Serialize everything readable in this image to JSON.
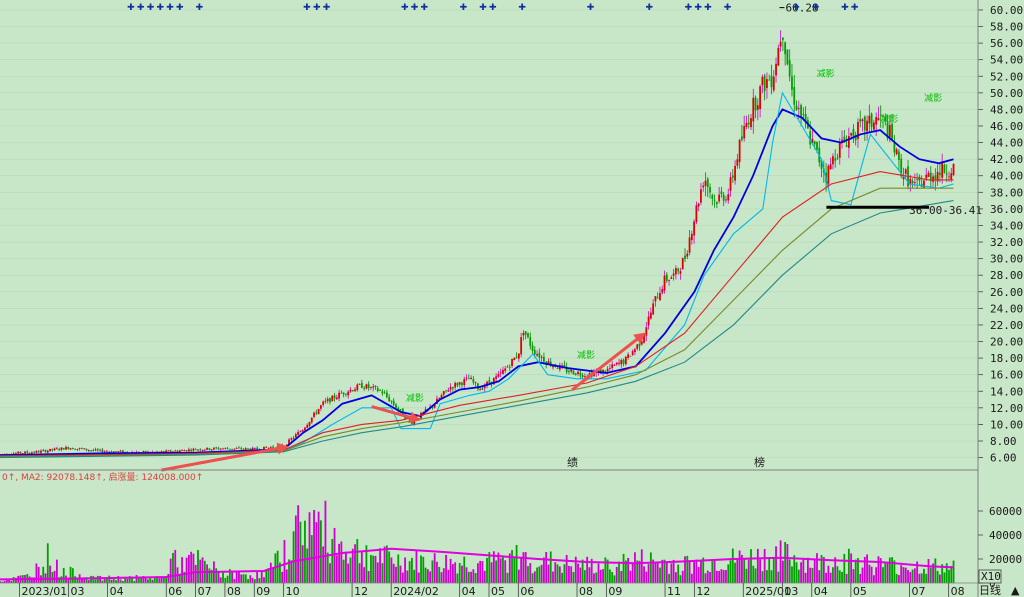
{
  "chart_data": [
    {
      "type": "candlestick",
      "title": "",
      "y_axis": {
        "ticks": [
          60.0,
          58.0,
          56.0,
          54.0,
          52.0,
          50.0,
          48.0,
          46.0,
          44.0,
          42.0,
          40.0,
          38.0,
          36.0,
          34.0,
          32.0,
          30.0,
          28.0,
          26.0,
          24.0,
          22.0,
          20.0,
          18.0,
          16.0,
          14.0,
          12.0,
          10.0,
          8.0,
          6.0
        ],
        "tick_labels": [
          "60.00",
          "58.00",
          "56.00",
          "54.00",
          "52.00",
          "50.00",
          "48.00",
          "46.00",
          "44.00",
          "42.00",
          "40.00",
          "38.00",
          "36.00",
          "34.00",
          "32.00",
          "30.00",
          "28.00",
          "26.00",
          "24.00",
          "22.00",
          "20.00",
          "18.00",
          "16.00",
          "14.00",
          "12.00",
          "10.00",
          "8.00",
          "6.00"
        ],
        "range": [
          4.5,
          61.2
        ]
      },
      "x_axis": {
        "labels": [
          "2023/01",
          "03",
          "04",
          "06",
          "07",
          "08",
          "09",
          "10",
          "12",
          "2024/02",
          "04",
          "05",
          "06",
          "08",
          "09",
          "11",
          "12",
          "2025/01",
          "03",
          "04",
          "05",
          "07",
          "08"
        ],
        "label_units": [
          0.02,
          0.07,
          0.11,
          0.17,
          0.2,
          0.23,
          0.26,
          0.29,
          0.36,
          0.4,
          0.47,
          0.5,
          0.53,
          0.59,
          0.62,
          0.68,
          0.71,
          0.76,
          0.8,
          0.83,
          0.87,
          0.93,
          0.97
        ]
      },
      "annotations": {
        "peak_label": "60.28",
        "peak": {
          "x": 0.797,
          "y": 60.28
        },
        "support_label": "36.00-36.41",
        "support_price": 36.2,
        "support_x_range": [
          0.845,
          0.95
        ],
        "center_marks": [
          "绩",
          "榜"
        ],
        "signal_label": "减影"
      },
      "price_path": [
        [
          0.0,
          6.4
        ],
        [
          0.04,
          6.7
        ],
        [
          0.07,
          7.2
        ],
        [
          0.1,
          6.8
        ],
        [
          0.14,
          6.6
        ],
        [
          0.17,
          6.7
        ],
        [
          0.2,
          7.0
        ],
        [
          0.23,
          7.1
        ],
        [
          0.26,
          7.0
        ],
        [
          0.29,
          7.4
        ],
        [
          0.31,
          9.5
        ],
        [
          0.33,
          12.5
        ],
        [
          0.35,
          13.8
        ],
        [
          0.37,
          14.7
        ],
        [
          0.39,
          14.0
        ],
        [
          0.41,
          11.5
        ],
        [
          0.42,
          10.2
        ],
        [
          0.44,
          12.0
        ],
        [
          0.46,
          14.5
        ],
        [
          0.48,
          15.5
        ],
        [
          0.49,
          14.3
        ],
        [
          0.51,
          15.8
        ],
        [
          0.53,
          18.5
        ],
        [
          0.535,
          21.5
        ],
        [
          0.545,
          19.0
        ],
        [
          0.56,
          17.5
        ],
        [
          0.58,
          16.5
        ],
        [
          0.6,
          16.0
        ],
        [
          0.62,
          16.5
        ],
        [
          0.64,
          17.8
        ],
        [
          0.655,
          20.0
        ],
        [
          0.67,
          25.0
        ],
        [
          0.68,
          27.5
        ],
        [
          0.69,
          28.0
        ],
        [
          0.7,
          30.0
        ],
        [
          0.71,
          35.0
        ],
        [
          0.72,
          40.0
        ],
        [
          0.73,
          37.0
        ],
        [
          0.745,
          38.0
        ],
        [
          0.755,
          43.0
        ],
        [
          0.765,
          47.0
        ],
        [
          0.78,
          51.0
        ],
        [
          0.79,
          52.0
        ],
        [
          0.8,
          58.0
        ],
        [
          0.81,
          50.0
        ],
        [
          0.83,
          44.0
        ],
        [
          0.845,
          40.0
        ],
        [
          0.855,
          43.0
        ],
        [
          0.87,
          45.0
        ],
        [
          0.885,
          46.0
        ],
        [
          0.9,
          47.0
        ],
        [
          0.91,
          45.0
        ],
        [
          0.92,
          41.0
        ],
        [
          0.935,
          38.5
        ],
        [
          0.95,
          40.0
        ],
        [
          0.96,
          40.5
        ],
        [
          0.975,
          41.0
        ]
      ],
      "series": [
        {
          "name": "",
          "color": "#0000e0",
          "values": [
            [
              0.0,
              6.3
            ],
            [
              0.1,
              6.5
            ],
            [
              0.2,
              6.6
            ],
            [
              0.29,
              7.0
            ],
            [
              0.31,
              9.0
            ],
            [
              0.33,
              10.5
            ],
            [
              0.35,
              12.5
            ],
            [
              0.38,
              13.5
            ],
            [
              0.41,
              11.5
            ],
            [
              0.43,
              11.0
            ],
            [
              0.45,
              13.0
            ],
            [
              0.47,
              14.2
            ],
            [
              0.49,
              14.5
            ],
            [
              0.51,
              15.2
            ],
            [
              0.53,
              17.0
            ],
            [
              0.55,
              17.5
            ],
            [
              0.58,
              16.8
            ],
            [
              0.62,
              16.2
            ],
            [
              0.65,
              17.0
            ],
            [
              0.68,
              21.0
            ],
            [
              0.71,
              26.0
            ],
            [
              0.73,
              31.0
            ],
            [
              0.75,
              35.0
            ],
            [
              0.77,
              40.0
            ],
            [
              0.79,
              46.0
            ],
            [
              0.8,
              48.0
            ],
            [
              0.82,
              47.0
            ],
            [
              0.84,
              44.5
            ],
            [
              0.86,
              44.0
            ],
            [
              0.88,
              45.0
            ],
            [
              0.9,
              45.5
            ],
            [
              0.92,
              43.5
            ],
            [
              0.94,
              42.0
            ],
            [
              0.96,
              41.5
            ],
            [
              0.975,
              42.0
            ]
          ]
        },
        {
          "name": "",
          "color": "#00b8f0",
          "values": [
            [
              0.0,
              6.2
            ],
            [
              0.2,
              6.4
            ],
            [
              0.29,
              6.8
            ],
            [
              0.31,
              7.8
            ],
            [
              0.34,
              10.0
            ],
            [
              0.37,
              12.0
            ],
            [
              0.4,
              12.0
            ],
            [
              0.41,
              9.5
            ],
            [
              0.44,
              9.5
            ],
            [
              0.45,
              12.5
            ],
            [
              0.48,
              13.5
            ],
            [
              0.5,
              14.0
            ],
            [
              0.52,
              15.5
            ],
            [
              0.545,
              18.5
            ],
            [
              0.56,
              16.0
            ],
            [
              0.59,
              15.5
            ],
            [
              0.62,
              15.5
            ],
            [
              0.66,
              16.5
            ],
            [
              0.7,
              22.0
            ],
            [
              0.72,
              28.0
            ],
            [
              0.75,
              33.0
            ],
            [
              0.78,
              36.0
            ],
            [
              0.79,
              44.0
            ],
            [
              0.8,
              50.0
            ],
            [
              0.82,
              46.0
            ],
            [
              0.84,
              42.0
            ],
            [
              0.85,
              37.0
            ],
            [
              0.87,
              36.5
            ],
            [
              0.89,
              45.0
            ],
            [
              0.91,
              42.0
            ],
            [
              0.93,
              39.0
            ],
            [
              0.96,
              38.5
            ],
            [
              0.975,
              39.0
            ]
          ]
        },
        {
          "name": "",
          "color": "#e02020",
          "values": [
            [
              0.0,
              6.2
            ],
            [
              0.2,
              6.5
            ],
            [
              0.29,
              6.9
            ],
            [
              0.33,
              9.0
            ],
            [
              0.37,
              10.0
            ],
            [
              0.41,
              10.5
            ],
            [
              0.47,
              12.3
            ],
            [
              0.53,
              13.5
            ],
            [
              0.6,
              15.0
            ],
            [
              0.65,
              17.0
            ],
            [
              0.7,
              21.0
            ],
            [
              0.75,
              28.0
            ],
            [
              0.8,
              35.0
            ],
            [
              0.85,
              39.0
            ],
            [
              0.9,
              40.5
            ],
            [
              0.95,
              39.5
            ],
            [
              0.975,
              39.5
            ]
          ]
        },
        {
          "name": "",
          "color": "#7a8a2a",
          "values": [
            [
              0.0,
              6.1
            ],
            [
              0.2,
              6.4
            ],
            [
              0.29,
              6.8
            ],
            [
              0.33,
              8.5
            ],
            [
              0.37,
              9.5
            ],
            [
              0.41,
              10.2
            ],
            [
              0.47,
              11.5
            ],
            [
              0.53,
              12.8
            ],
            [
              0.6,
              14.5
            ],
            [
              0.65,
              16.0
            ],
            [
              0.7,
              19.0
            ],
            [
              0.75,
              25.0
            ],
            [
              0.8,
              31.0
            ],
            [
              0.85,
              36.0
            ],
            [
              0.9,
              38.5
            ],
            [
              0.95,
              38.5
            ],
            [
              0.975,
              38.5
            ]
          ]
        },
        {
          "name": "",
          "color": "#208a8a",
          "values": [
            [
              0.0,
              6.0
            ],
            [
              0.2,
              6.3
            ],
            [
              0.29,
              6.7
            ],
            [
              0.33,
              8.0
            ],
            [
              0.37,
              9.0
            ],
            [
              0.41,
              9.7
            ],
            [
              0.47,
              11.0
            ],
            [
              0.53,
              12.3
            ],
            [
              0.6,
              13.8
            ],
            [
              0.65,
              15.2
            ],
            [
              0.7,
              17.5
            ],
            [
              0.75,
              22.0
            ],
            [
              0.8,
              28.0
            ],
            [
              0.85,
              33.0
            ],
            [
              0.9,
              35.5
            ],
            [
              0.95,
              36.5
            ],
            [
              0.975,
              37.0
            ]
          ]
        }
      ],
      "arrows": [
        [
          0.165,
          0.295
        ],
        [
          0.38,
          0.43
        ],
        [
          0.585,
          0.66
        ]
      ]
    },
    {
      "type": "bar",
      "title": "",
      "legend_text": "0↑, MA2: 92078.148↑, 启涨量: 124008.000↑",
      "y_axis": {
        "tick_labels": [
          "60000",
          "40000",
          "20000",
          "0"
        ],
        "ticks": [
          60000,
          40000,
          20000,
          0
        ],
        "range": [
          0,
          80000
        ]
      },
      "scale_label": "X10",
      "period_label": "日线",
      "series": [
        {
          "name": "MA",
          "color": "#e000e0",
          "values": [
            [
              0.0,
              3000
            ],
            [
              0.1,
              4000
            ],
            [
              0.17,
              5000
            ],
            [
              0.2,
              9000
            ],
            [
              0.27,
              10000
            ],
            [
              0.3,
              18000
            ],
            [
              0.35,
              25000
            ],
            [
              0.4,
              28500
            ],
            [
              0.45,
              26000
            ],
            [
              0.5,
              23000
            ],
            [
              0.55,
              20000
            ],
            [
              0.6,
              17500
            ],
            [
              0.65,
              16500
            ],
            [
              0.7,
              18000
            ],
            [
              0.75,
              20000
            ],
            [
              0.8,
              21000
            ],
            [
              0.85,
              19000
            ],
            [
              0.9,
              17500
            ],
            [
              0.95,
              14000
            ],
            [
              0.975,
              13000
            ]
          ]
        }
      ],
      "volume_shape": [
        [
          0.0,
          2000
        ],
        [
          0.03,
          8000
        ],
        [
          0.05,
          30000
        ],
        [
          0.06,
          14000
        ],
        [
          0.1,
          5000
        ],
        [
          0.17,
          6000
        ],
        [
          0.175,
          40000
        ],
        [
          0.18,
          20000
        ],
        [
          0.2,
          25000
        ],
        [
          0.23,
          10000
        ],
        [
          0.27,
          9000
        ],
        [
          0.29,
          30000
        ],
        [
          0.31,
          70000
        ],
        [
          0.33,
          60000
        ],
        [
          0.35,
          40000
        ],
        [
          0.4,
          25000
        ],
        [
          0.45,
          22000
        ],
        [
          0.5,
          22000
        ],
        [
          0.53,
          28000
        ],
        [
          0.58,
          20000
        ],
        [
          0.62,
          18000
        ],
        [
          0.65,
          25000
        ],
        [
          0.7,
          20000
        ],
        [
          0.75,
          25000
        ],
        [
          0.8,
          30000
        ],
        [
          0.83,
          22000
        ],
        [
          0.87,
          25000
        ],
        [
          0.9,
          20000
        ],
        [
          0.95,
          18000
        ],
        [
          0.975,
          16000
        ]
      ]
    }
  ],
  "colors": {
    "background": "#c8e6c8",
    "up": "#e00000",
    "down": "#00a000",
    "grid": "#b4d2b4"
  }
}
